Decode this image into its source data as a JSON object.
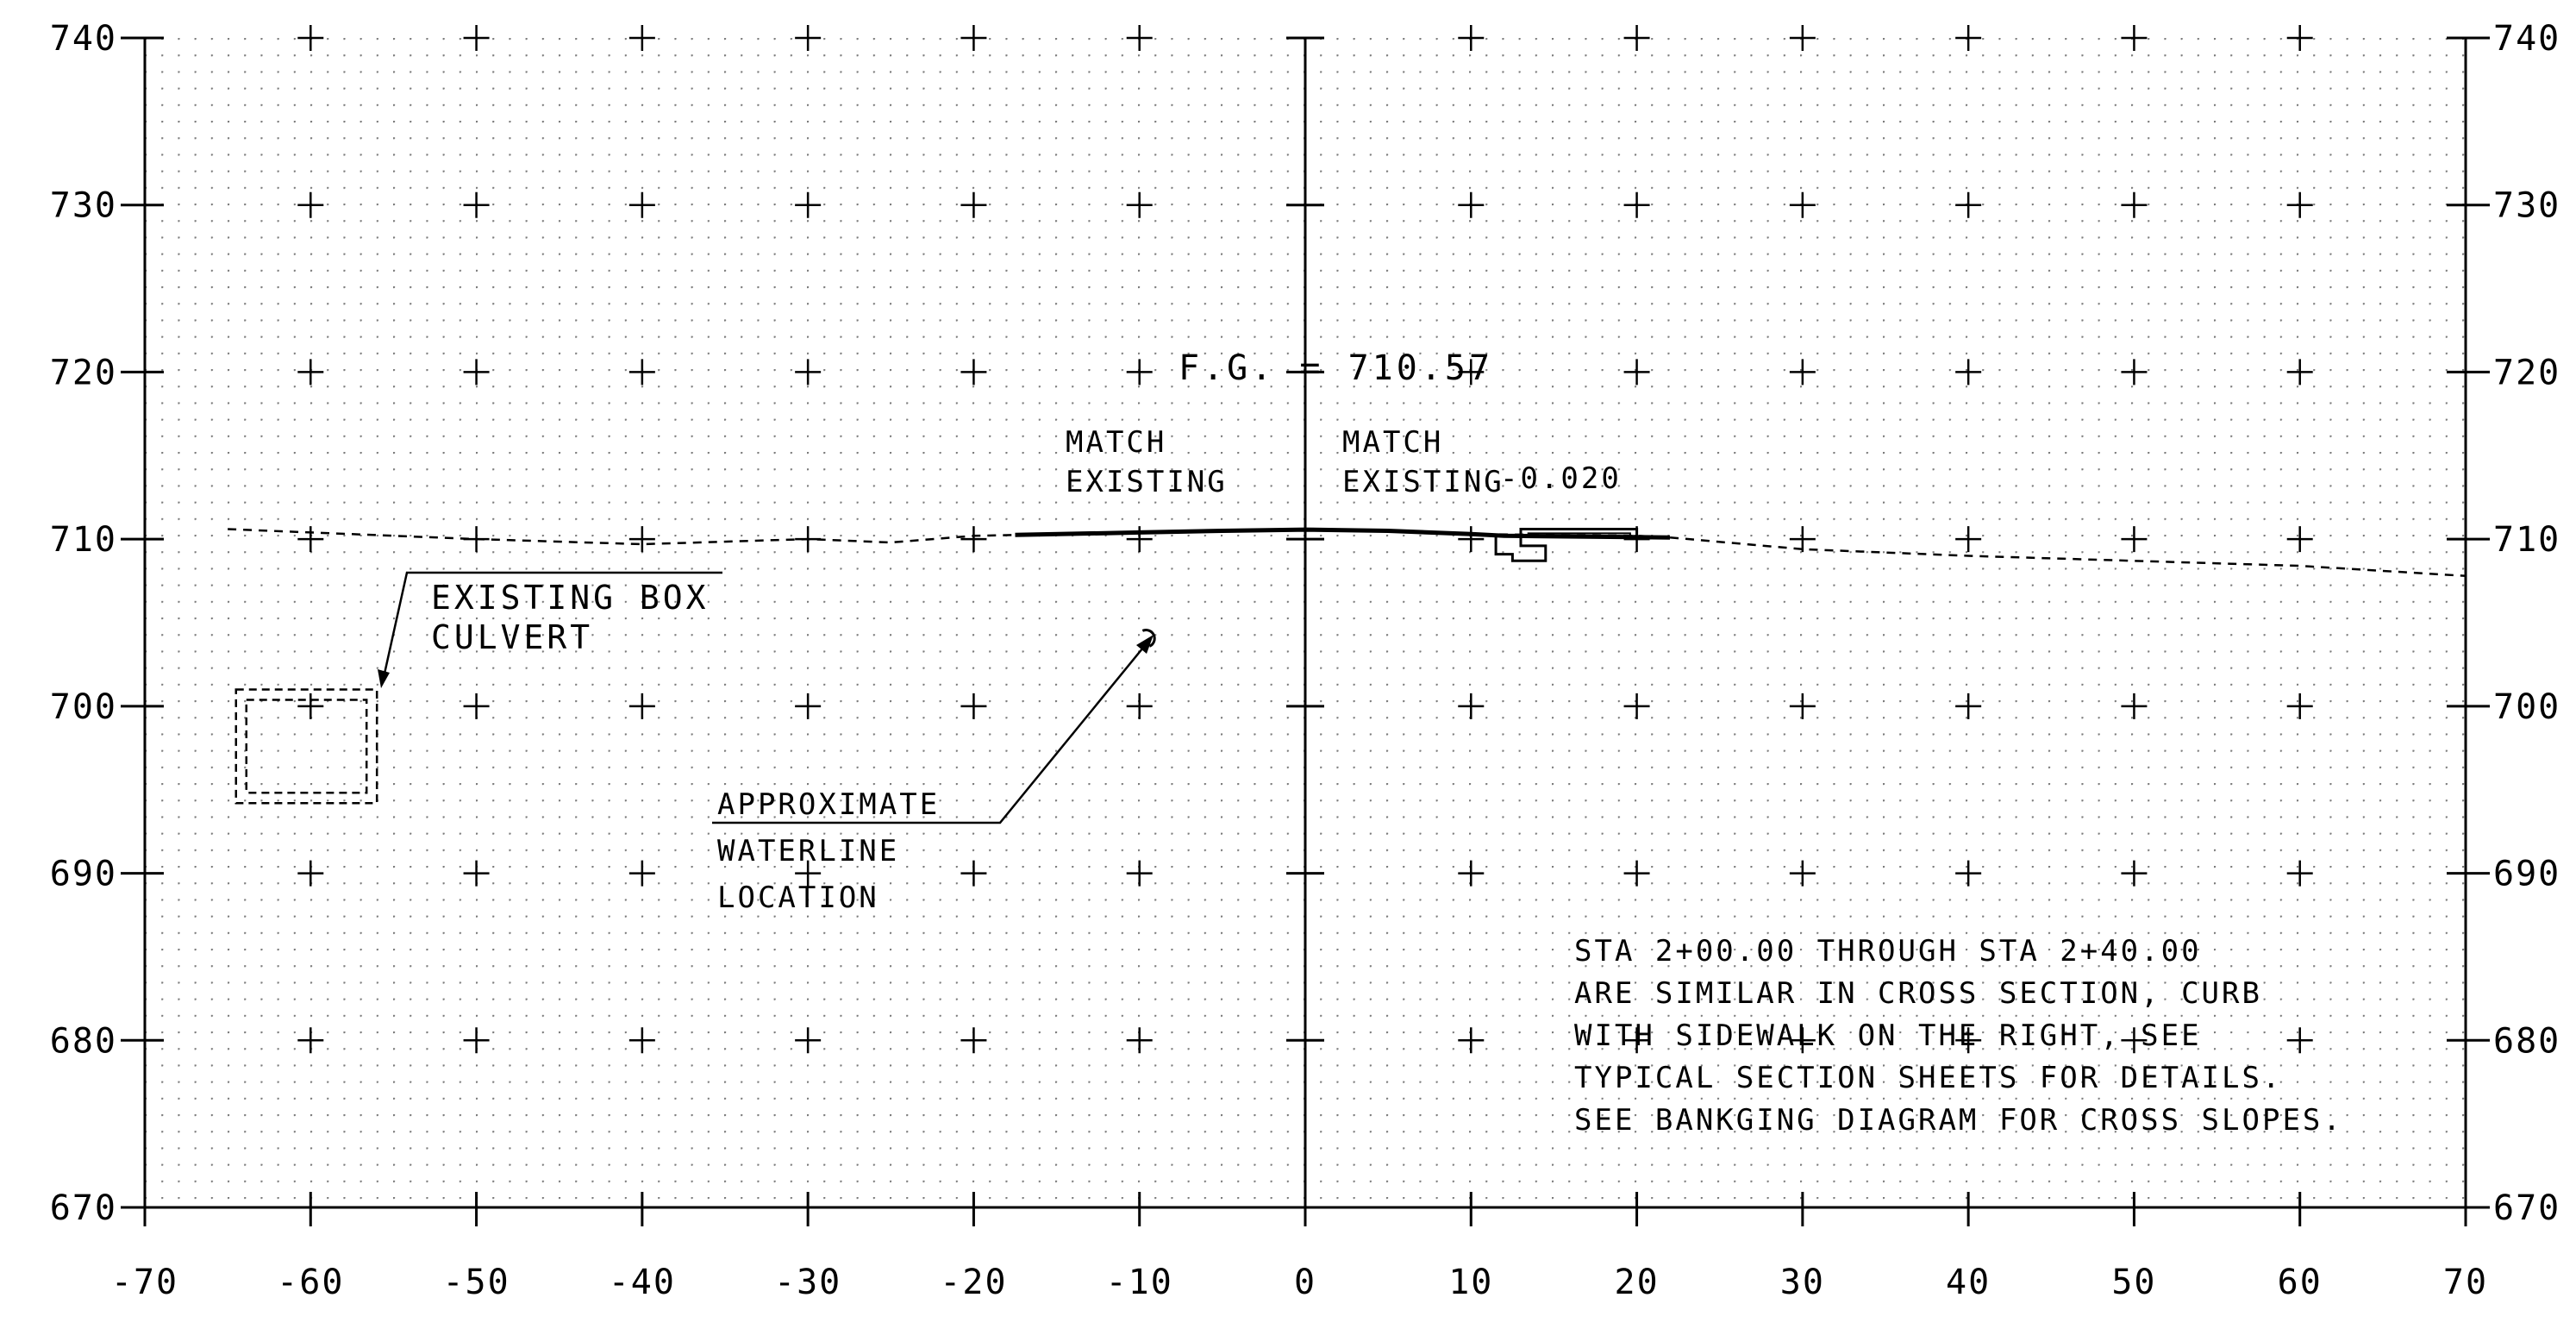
{
  "chart_data": {
    "type": "cross-section",
    "x_ticks": [
      "-70",
      "-60",
      "-50",
      "-40",
      "-30",
      "-20",
      "-10",
      "0",
      "10",
      "20",
      "30",
      "40",
      "50",
      "60",
      "70"
    ],
    "y_ticks": [
      "670",
      "680",
      "690",
      "700",
      "710",
      "720",
      "730",
      "740"
    ],
    "xlim": [
      -70,
      70
    ],
    "ylim": [
      670,
      740
    ],
    "grid": "dotted",
    "existing_ground": [
      [
        -65,
        710.6
      ],
      [
        -60,
        710.4
      ],
      [
        -50,
        710.0
      ],
      [
        -40,
        709.7
      ],
      [
        -30,
        710.0
      ],
      [
        -25,
        709.8
      ],
      [
        -20,
        710.2
      ],
      [
        -10,
        710.4
      ],
      [
        0,
        710.6
      ],
      [
        10,
        710.3
      ],
      [
        20,
        710.2
      ],
      [
        22,
        710.1
      ],
      [
        30,
        709.4
      ],
      [
        40,
        709.0
      ],
      [
        50,
        708.7
      ],
      [
        60,
        708.4
      ],
      [
        70,
        707.8
      ]
    ],
    "finished_grade": [
      [
        -17.5,
        710.25
      ],
      [
        -10,
        710.4
      ],
      [
        -5,
        710.5
      ],
      [
        0,
        710.57
      ],
      [
        5,
        710.5
      ],
      [
        10,
        710.3
      ],
      [
        12,
        710.2
      ],
      [
        22,
        710.1
      ]
    ],
    "curb_outline": [
      [
        11.5,
        710.2
      ],
      [
        11.5,
        709.1
      ],
      [
        12.5,
        709.1
      ],
      [
        12.5,
        708.7
      ],
      [
        14.5,
        708.7
      ],
      [
        14.5,
        709.6
      ],
      [
        13.0,
        709.6
      ],
      [
        13.0,
        710.6
      ],
      [
        20.0,
        710.6
      ],
      [
        20.0,
        710.1
      ]
    ],
    "culvert_box": {
      "x1": -64.5,
      "x2": -56,
      "y1": 694.2,
      "y2": 701.0
    },
    "waterline_point": {
      "x": -9.5,
      "y": 704.0
    }
  },
  "labels": {
    "fg": "F.G. = 710.57",
    "match_left_1": "MATCH",
    "match_left_2": "EXISTING",
    "match_right_1": "MATCH",
    "match_right_2": "EXISTING",
    "slope": "-0.020",
    "culvert_1": "EXISTING BOX",
    "culvert_2": "CULVERT",
    "waterline_1": "APPROXIMATE",
    "waterline_2": "WATERLINE",
    "waterline_3": "LOCATION"
  },
  "note": {
    "lines": [
      "STA 2+00.00 THROUGH STA 2+40.00",
      "ARE SIMILAR IN CROSS SECTION, CURB",
      "WITH SIDEWALK ON THE RIGHT, SEE",
      "TYPICAL SECTION SHEETS FOR DETAILS.",
      "SEE BANKGING DIAGRAM FOR CROSS SLOPES."
    ]
  },
  "colors": {
    "ink": "#000000",
    "grid_dot": "#7a7a7a",
    "background": "#ffffff"
  }
}
